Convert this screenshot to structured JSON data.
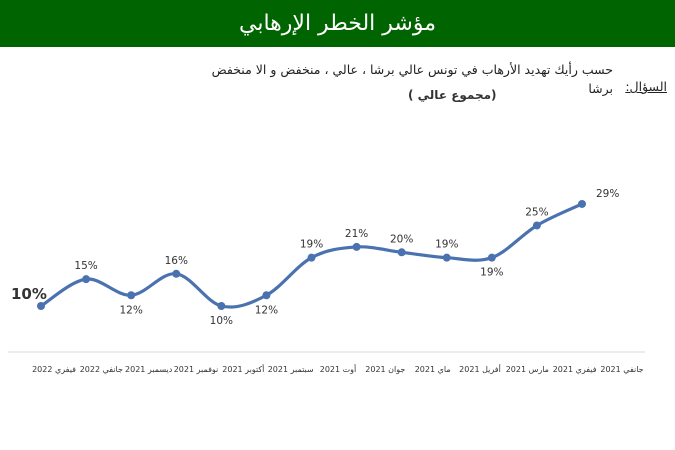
{
  "header": {
    "title": "مؤشر الخطر الإرهابي"
  },
  "question": {
    "label": "السؤال:",
    "text": "حسب رأيك تهديد الأرهاب في تونس عالي برشا ، عالي ، منخفض و الا منخفض برشا",
    "note": "(مجموع عالي )"
  },
  "colors": {
    "banner": "#006400",
    "line": "#4a72b0"
  },
  "chart_data": {
    "type": "line",
    "categories": [
      "جانفي 2021",
      "فيفري 2021",
      "مارس 2021",
      "أفريل 2021",
      "ماي 2021",
      "جوان 2021",
      "أوت 2021",
      "سبتمبر 2021",
      "أكتوبر 2021",
      "نوفمبر 2021",
      "ديسمبر 2021",
      "جانفي 2022",
      "فيفري 2022"
    ],
    "x_direction": "right-to-left",
    "values": [
      29,
      25,
      19,
      19,
      20,
      21,
      19,
      12,
      10,
      16,
      12,
      15,
      10
    ],
    "value_labels": [
      "29%",
      "25%",
      "19%",
      "19%",
      "20%",
      "21%",
      "19%",
      "12%",
      "10%",
      "16%",
      "12%",
      "15%",
      "10%"
    ],
    "smooth": true,
    "grid": false,
    "legend": "none"
  }
}
